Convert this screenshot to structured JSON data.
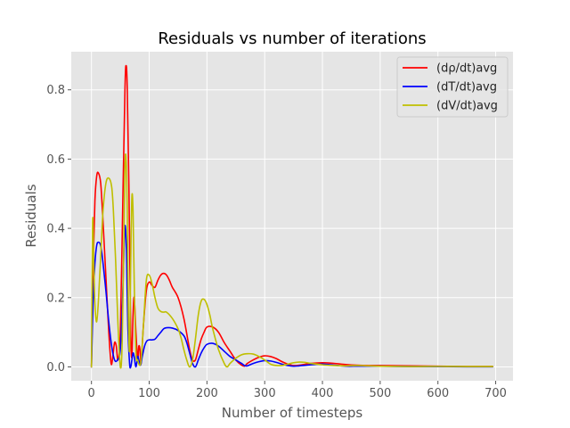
{
  "chart_data": {
    "type": "line",
    "title": "Residuals vs number of iterations",
    "xlabel": "Number of timesteps",
    "ylabel": "Residuals",
    "xlim": [
      -35,
      730
    ],
    "ylim": [
      -0.04,
      0.91
    ],
    "xticks": [
      0,
      100,
      200,
      300,
      400,
      500,
      600,
      700
    ],
    "xtick_labels": [
      "0",
      "100",
      "200",
      "300",
      "400",
      "500",
      "600",
      "700"
    ],
    "yticks": [
      0.0,
      0.2,
      0.4,
      0.6,
      0.8
    ],
    "ytick_labels": [
      "0.0",
      "0.2",
      "0.4",
      "0.6",
      "0.8"
    ],
    "grid": true,
    "legend_position": "top-right",
    "style": "ggplot",
    "series": [
      {
        "name": "(dρ/dt)avg",
        "color": "#ff0000",
        "x": [
          0,
          3,
          6,
          9,
          12,
          16,
          20,
          25,
          30,
          34,
          37,
          40,
          43,
          46,
          50,
          54,
          58,
          60,
          62,
          65,
          68,
          70,
          72,
          74,
          77,
          80,
          82,
          84,
          86,
          90,
          95,
          100,
          105,
          110,
          115,
          120,
          125,
          130,
          135,
          140,
          150,
          160,
          170,
          175,
          180,
          185,
          190,
          195,
          200,
          210,
          220,
          230,
          240,
          250,
          260,
          265,
          270,
          280,
          290,
          300,
          310,
          320,
          330,
          340,
          350,
          360,
          380,
          400,
          420,
          440,
          460,
          480,
          500,
          550,
          600,
          650,
          695
        ],
        "y": [
          0.0,
          0.3,
          0.48,
          0.55,
          0.56,
          0.53,
          0.42,
          0.26,
          0.1,
          0.01,
          0.03,
          0.07,
          0.06,
          0.02,
          0.1,
          0.45,
          0.8,
          0.87,
          0.8,
          0.5,
          0.1,
          0.03,
          0.15,
          0.2,
          0.1,
          0.02,
          0.06,
          0.05,
          0.01,
          0.12,
          0.22,
          0.245,
          0.235,
          0.23,
          0.25,
          0.265,
          0.27,
          0.265,
          0.25,
          0.23,
          0.2,
          0.14,
          0.05,
          0.02,
          0.02,
          0.05,
          0.08,
          0.1,
          0.115,
          0.115,
          0.1,
          0.07,
          0.045,
          0.02,
          0.005,
          0.002,
          0.01,
          0.02,
          0.028,
          0.032,
          0.03,
          0.024,
          0.015,
          0.008,
          0.004,
          0.005,
          0.01,
          0.012,
          0.01,
          0.007,
          0.005,
          0.004,
          0.004,
          0.003,
          0.002,
          0.001,
          0.001
        ]
      },
      {
        "name": "(dT/dt)avg",
        "color": "#0000ff",
        "x": [
          0,
          3,
          6,
          9,
          12,
          16,
          20,
          25,
          30,
          35,
          40,
          45,
          50,
          54,
          57,
          59,
          61,
          63,
          66,
          68,
          70,
          72,
          74,
          77,
          80,
          82,
          85,
          88,
          92,
          96,
          100,
          105,
          110,
          115,
          120,
          125,
          130,
          140,
          150,
          160,
          165,
          170,
          175,
          180,
          185,
          190,
          195,
          200,
          210,
          220,
          230,
          240,
          250,
          260,
          265,
          270,
          280,
          290,
          300,
          310,
          320,
          330,
          340,
          350,
          360,
          380,
          400,
          420,
          440,
          460,
          480,
          500,
          550,
          600,
          650,
          695
        ],
        "y": [
          0.0,
          0.2,
          0.3,
          0.35,
          0.36,
          0.35,
          0.3,
          0.22,
          0.13,
          0.06,
          0.02,
          0.02,
          0.05,
          0.2,
          0.38,
          0.4,
          0.3,
          0.12,
          0.01,
          0.0,
          0.02,
          0.04,
          0.03,
          0.0,
          0.03,
          0.02,
          0.005,
          0.03,
          0.06,
          0.075,
          0.078,
          0.078,
          0.08,
          0.09,
          0.1,
          0.11,
          0.113,
          0.112,
          0.105,
          0.09,
          0.07,
          0.04,
          0.01,
          0.0,
          0.02,
          0.04,
          0.055,
          0.065,
          0.068,
          0.06,
          0.045,
          0.03,
          0.02,
          0.01,
          0.004,
          0.003,
          0.01,
          0.015,
          0.018,
          0.017,
          0.013,
          0.008,
          0.004,
          0.002,
          0.003,
          0.006,
          0.008,
          0.005,
          0.002,
          0.002,
          0.002,
          0.002,
          0.001,
          0.001,
          0.0005,
          0.0005
        ]
      },
      {
        "name": "(dV/dt)avg",
        "color": "#bfbf00",
        "x": [
          0,
          2,
          4,
          6,
          9,
          12,
          16,
          20,
          25,
          30,
          35,
          38,
          42,
          46,
          50,
          53,
          56,
          58,
          60,
          62,
          64,
          66,
          68,
          70,
          72,
          74,
          77,
          80,
          83,
          86,
          90,
          95,
          100,
          105,
          110,
          115,
          120,
          125,
          130,
          140,
          150,
          155,
          160,
          165,
          170,
          175,
          180,
          185,
          190,
          195,
          200,
          205,
          210,
          220,
          230,
          235,
          240,
          250,
          260,
          270,
          280,
          290,
          300,
          310,
          320,
          330,
          340,
          350,
          360,
          370,
          380,
          400,
          420,
          440,
          460,
          480,
          500,
          550,
          600,
          650,
          695
        ],
        "y": [
          0.0,
          0.42,
          0.3,
          0.18,
          0.13,
          0.19,
          0.32,
          0.45,
          0.53,
          0.545,
          0.52,
          0.45,
          0.3,
          0.12,
          0.0,
          0.06,
          0.35,
          0.58,
          0.6,
          0.45,
          0.15,
          0.05,
          0.3,
          0.49,
          0.45,
          0.25,
          0.04,
          0.02,
          0.005,
          0.02,
          0.12,
          0.25,
          0.265,
          0.24,
          0.2,
          0.17,
          0.16,
          0.158,
          0.158,
          0.14,
          0.11,
          0.085,
          0.05,
          0.02,
          0.0,
          0.02,
          0.08,
          0.15,
          0.19,
          0.195,
          0.18,
          0.15,
          0.11,
          0.05,
          0.01,
          0.0,
          0.01,
          0.025,
          0.035,
          0.038,
          0.037,
          0.03,
          0.02,
          0.008,
          0.004,
          0.004,
          0.008,
          0.012,
          0.014,
          0.013,
          0.01,
          0.006,
          0.004,
          0.003,
          0.004,
          0.003,
          0.002,
          0.001,
          0.0015,
          0.001,
          0.001
        ]
      }
    ]
  }
}
